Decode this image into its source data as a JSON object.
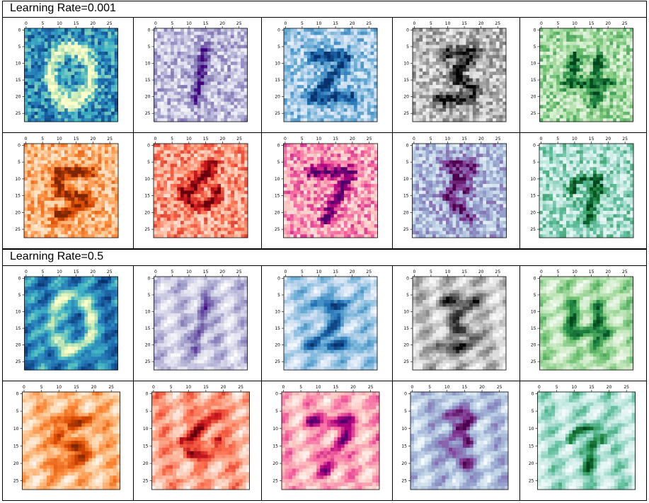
{
  "sections": [
    {
      "label": "Learning Rate=0.001"
    },
    {
      "label": "Learning Rate=0.5"
    }
  ],
  "chart_data": {
    "type": "heatmap",
    "description_grid": "4 rows x 5 columns of 28x28 weight visualizations",
    "x_ticks": [
      0,
      5,
      10,
      15,
      20,
      25
    ],
    "y_ticks": [
      0,
      5,
      10,
      15,
      20,
      25
    ],
    "xlim": [
      0,
      27
    ],
    "ylim": [
      27,
      0
    ],
    "panels": [
      {
        "section": 0,
        "row": 0,
        "col": 0,
        "cmap": [
          "#08306b",
          "#2171b5",
          "#41b6c4",
          "#c7e9b4",
          "#ffffcc"
        ],
        "digit": 0
      },
      {
        "section": 0,
        "row": 0,
        "col": 1,
        "cmap": [
          "#ffffff",
          "#dadaeb",
          "#9e9ac8",
          "#6a51a3",
          "#3f007d"
        ],
        "digit": 1
      },
      {
        "section": 0,
        "row": 0,
        "col": 2,
        "cmap": [
          "#f7fbff",
          "#c6dbef",
          "#6baed6",
          "#2171b5",
          "#08306b"
        ],
        "digit": 2
      },
      {
        "section": 0,
        "row": 0,
        "col": 3,
        "cmap": [
          "#ffffff",
          "#d9d9d9",
          "#969696",
          "#525252",
          "#000000"
        ],
        "digit": 3
      },
      {
        "section": 0,
        "row": 0,
        "col": 4,
        "cmap": [
          "#f7fcf5",
          "#c7e9c0",
          "#74c476",
          "#238b45",
          "#00441b"
        ],
        "digit": 4
      },
      {
        "section": 0,
        "row": 1,
        "col": 0,
        "cmap": [
          "#fff5eb",
          "#fdd0a2",
          "#fd8d3c",
          "#d94801",
          "#7f2704"
        ],
        "digit": 5
      },
      {
        "section": 0,
        "row": 1,
        "col": 1,
        "cmap": [
          "#fff5f0",
          "#fcbba1",
          "#fb6a4a",
          "#cb181d",
          "#67000d"
        ],
        "digit": 6
      },
      {
        "section": 0,
        "row": 1,
        "col": 2,
        "cmap": [
          "#fff7f3",
          "#fcc5c0",
          "#f768a1",
          "#ae017e",
          "#49006a"
        ],
        "digit": 7
      },
      {
        "section": 0,
        "row": 1,
        "col": 3,
        "cmap": [
          "#f7fcfd",
          "#bfd3e6",
          "#8c96c6",
          "#88419d",
          "#4d004b"
        ],
        "digit": 8
      },
      {
        "section": 0,
        "row": 1,
        "col": 4,
        "cmap": [
          "#f7fcfd",
          "#ccece6",
          "#66c2a4",
          "#238b45",
          "#00441b"
        ],
        "digit": 9
      },
      {
        "section": 1,
        "row": 0,
        "col": 0,
        "cmap": [
          "#08306b",
          "#2171b5",
          "#41b6c4",
          "#c7e9b4",
          "#ffffcc"
        ],
        "digit": 0
      },
      {
        "section": 1,
        "row": 0,
        "col": 1,
        "cmap": [
          "#ffffff",
          "#dadaeb",
          "#9e9ac8",
          "#6a51a3",
          "#3f007d"
        ],
        "digit": 1
      },
      {
        "section": 1,
        "row": 0,
        "col": 2,
        "cmap": [
          "#f7fbff",
          "#c6dbef",
          "#6baed6",
          "#2171b5",
          "#08306b"
        ],
        "digit": 2
      },
      {
        "section": 1,
        "row": 0,
        "col": 3,
        "cmap": [
          "#ffffff",
          "#d9d9d9",
          "#969696",
          "#525252",
          "#000000"
        ],
        "digit": 3
      },
      {
        "section": 1,
        "row": 0,
        "col": 4,
        "cmap": [
          "#f7fcf5",
          "#c7e9c0",
          "#74c476",
          "#238b45",
          "#00441b"
        ],
        "digit": 4
      },
      {
        "section": 1,
        "row": 1,
        "col": 0,
        "cmap": [
          "#fff5eb",
          "#fdd0a2",
          "#fd8d3c",
          "#d94801",
          "#7f2704"
        ],
        "digit": 5
      },
      {
        "section": 1,
        "row": 1,
        "col": 1,
        "cmap": [
          "#fff5f0",
          "#fcbba1",
          "#fb6a4a",
          "#cb181d",
          "#67000d"
        ],
        "digit": 6
      },
      {
        "section": 1,
        "row": 1,
        "col": 2,
        "cmap": [
          "#fff7f3",
          "#fcc5c0",
          "#f768a1",
          "#ae017e",
          "#49006a"
        ],
        "digit": 7
      },
      {
        "section": 1,
        "row": 1,
        "col": 3,
        "cmap": [
          "#f7fcfd",
          "#bfd3e6",
          "#8c96c6",
          "#88419d",
          "#4d004b"
        ],
        "digit": 8
      },
      {
        "section": 1,
        "row": 1,
        "col": 4,
        "cmap": [
          "#f7fcfd",
          "#ccece6",
          "#66c2a4",
          "#238b45",
          "#00441b"
        ],
        "digit": 9
      }
    ]
  }
}
